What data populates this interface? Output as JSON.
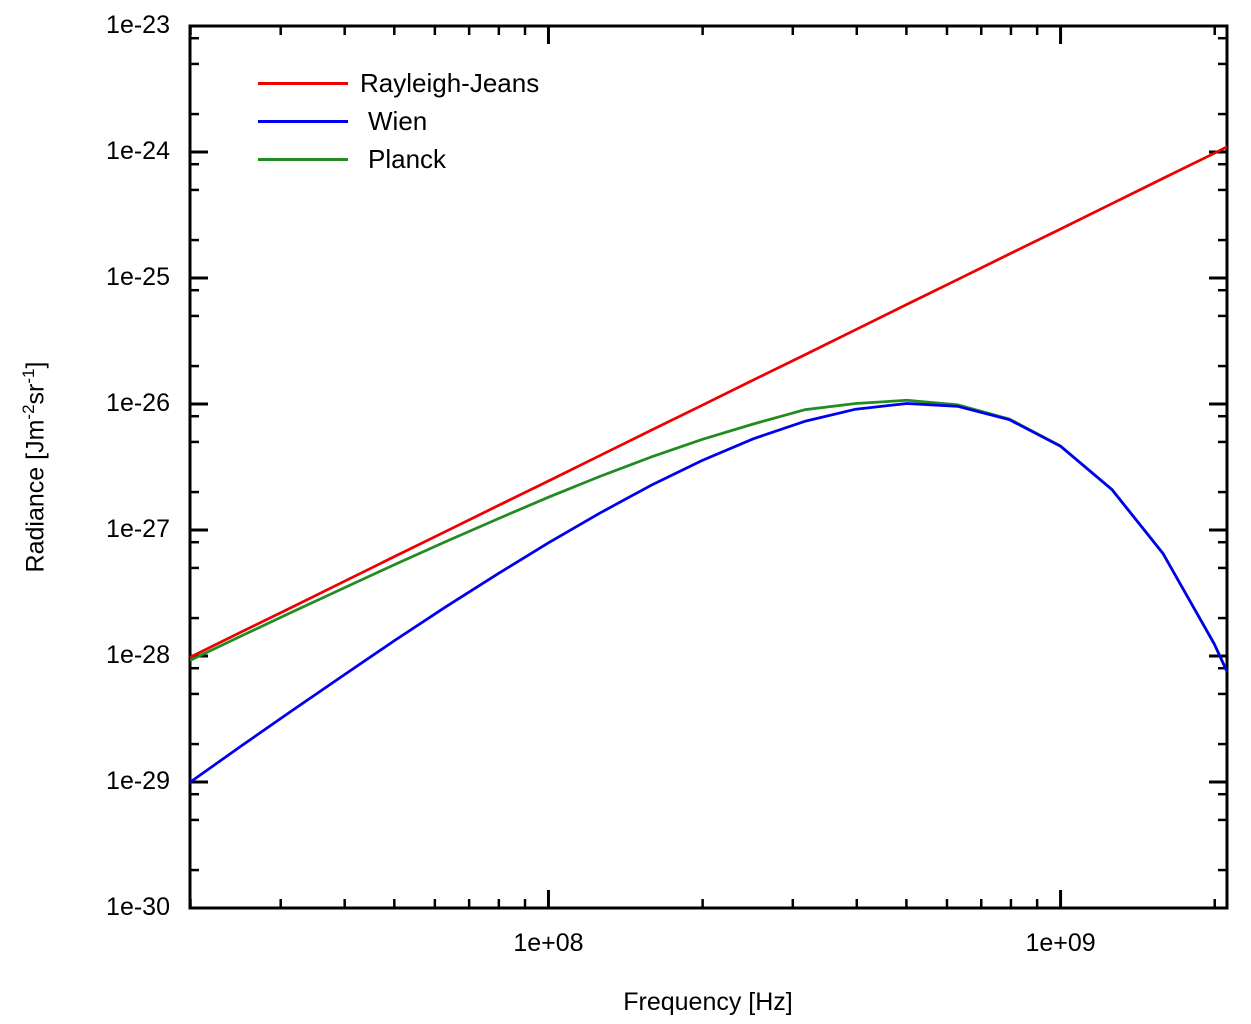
{
  "chart_data": {
    "type": "line",
    "title": "",
    "xlabel": "Frequency [Hz]",
    "ylabel": "Radiance [Jm⁻²sr⁻¹]",
    "ylabel_segments": [
      {
        "text": "Radiance [Jm"
      },
      {
        "text": "-2",
        "sup": true
      },
      {
        "text": "sr"
      },
      {
        "text": "-1",
        "sup": true
      },
      {
        "text": "]"
      }
    ],
    "x_scale": "log",
    "y_scale": "log",
    "xlim": [
      19953000.0,
      2113500000.0
    ],
    "ylim": [
      1e-30,
      1e-23
    ],
    "grid": false,
    "legend_position": "top-left",
    "x_ticks": [
      {
        "value": 100000000.0,
        "label": "1e+08"
      },
      {
        "value": 1000000000.0,
        "label": "1e+09"
      }
    ],
    "y_ticks": [
      {
        "value": 1e-23,
        "label": "1e-23"
      },
      {
        "value": 1e-24,
        "label": "1e-24"
      },
      {
        "value": 1e-25,
        "label": "1e-25"
      },
      {
        "value": 1e-26,
        "label": "1e-26"
      },
      {
        "value": 1e-27,
        "label": "1e-27"
      },
      {
        "value": 1e-28,
        "label": "1e-28"
      },
      {
        "value": 1e-29,
        "label": "1e-29"
      },
      {
        "value": 1e-30,
        "label": "1e-30"
      }
    ],
    "x_minor_mantissas": [
      2,
      3,
      4,
      5,
      6,
      7,
      8,
      9
    ],
    "y_minor_mantissas": [
      2,
      5,
      8
    ],
    "x": [
      19953000.0,
      25119000.0,
      31623000.0,
      39811000.0,
      50119000.0,
      63096000.0,
      79433000.0,
      100000000.0,
      125890000.0,
      158490000.0,
      199530000.0,
      251190000.0,
      316230000.0,
      398110000.0,
      501190000.0,
      630960000.0,
      794330000.0,
      1000000000.0,
      1258900000.0,
      1584900000.0,
      1995300000.0,
      2113500000.0
    ],
    "series": [
      {
        "name": "Rayleigh-Jeans",
        "color": "#ee0000",
        "values": [
          9.77e-29,
          1.55e-28,
          2.45e-28,
          3.89e-28,
          6.17e-28,
          9.77e-28,
          1.55e-27,
          2.45e-27,
          3.89e-27,
          6.17e-27,
          9.77e-27,
          1.55e-26,
          2.45e-26,
          3.89e-26,
          6.17e-26,
          9.77e-26,
          1.55e-25,
          2.45e-25,
          3.89e-25,
          6.17e-25,
          9.77e-25,
          1.1e-24
        ]
      },
      {
        "name": "Wien",
        "color": "#0000ee",
        "values": [
          9.94e-30,
          1.93e-29,
          3.7e-29,
          7.04e-29,
          1.33e-28,
          2.46e-28,
          4.46e-28,
          7.91e-28,
          1.36e-27,
          2.26e-27,
          3.56e-27,
          5.29e-27,
          7.28e-27,
          9.09e-27,
          1.01e-26,
          9.57e-27,
          7.51e-27,
          4.62e-27,
          2.1e-27,
          6.51e-28,
          1.25e-28,
          7.53e-29
        ]
      },
      {
        "name": "Planck",
        "color": "#228b22",
        "values": [
          9.22e-29,
          1.44e-28,
          2.24e-28,
          3.46e-28,
          5.32e-28,
          8.11e-28,
          1.22e-27,
          1.82e-27,
          2.66e-27,
          3.79e-27,
          5.24e-27,
          6.94e-27,
          8.99e-27,
          1.01e-26,
          1.07e-26,
          9.84e-27,
          7.59e-27,
          4.64e-27,
          2.1e-27,
          6.51e-28,
          1.25e-28,
          7.53e-29
        ]
      }
    ]
  },
  "colors": {
    "background": "#ffffff",
    "axis": "#000000",
    "text": "#000000"
  }
}
